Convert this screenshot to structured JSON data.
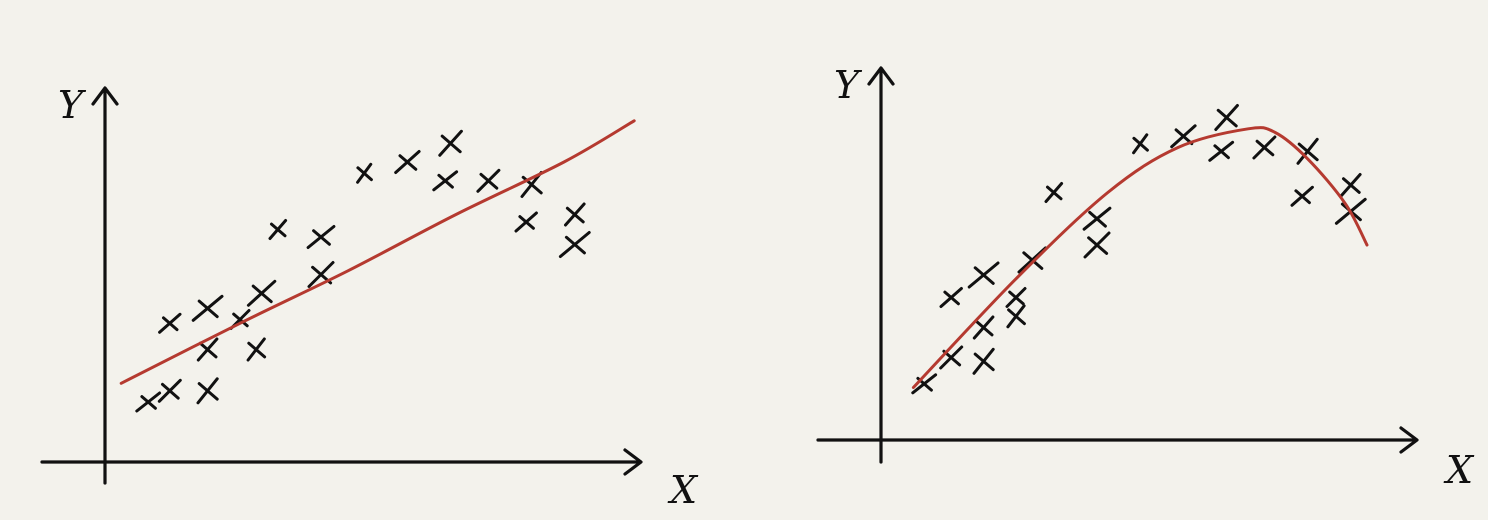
{
  "colors": {
    "background": "#f3f2ec",
    "ink": "#111111",
    "fit_curve": "#b53a30"
  },
  "chart_data": [
    {
      "type": "scatter",
      "title": "",
      "xlabel": "X",
      "ylabel": "Y",
      "xlim": [
        0,
        10
      ],
      "ylim": [
        0,
        10
      ],
      "fit": "linear",
      "points": [
        [
          0.8,
          1.6
        ],
        [
          1.2,
          1.9
        ],
        [
          1.9,
          1.9
        ],
        [
          1.2,
          3.7
        ],
        [
          1.9,
          3.0
        ],
        [
          1.9,
          4.1
        ],
        [
          2.5,
          3.8
        ],
        [
          2.8,
          3.0
        ],
        [
          2.9,
          4.5
        ],
        [
          3.2,
          6.2
        ],
        [
          4.0,
          6.0
        ],
        [
          4.0,
          5.0
        ],
        [
          4.8,
          7.7
        ],
        [
          5.6,
          8.0
        ],
        [
          6.4,
          8.5
        ],
        [
          6.3,
          7.5
        ],
        [
          7.1,
          7.5
        ],
        [
          7.9,
          7.4
        ],
        [
          7.8,
          6.4
        ],
        [
          8.7,
          6.6
        ],
        [
          8.7,
          5.8
        ]
      ],
      "fit_curve": [
        [
          0.3,
          2.1
        ],
        [
          2.5,
          3.7
        ],
        [
          4.5,
          5.1
        ],
        [
          6.5,
          6.6
        ],
        [
          8.5,
          8.0
        ],
        [
          9.8,
          9.1
        ]
      ]
    },
    {
      "type": "scatter",
      "title": "",
      "xlabel": "X",
      "ylabel": "Y",
      "xlim": [
        0,
        10
      ],
      "ylim": [
        0,
        10
      ],
      "fit": "curve",
      "points": [
        [
          0.8,
          1.5
        ],
        [
          1.3,
          2.2
        ],
        [
          1.9,
          2.1
        ],
        [
          1.3,
          3.8
        ],
        [
          1.9,
          3.0
        ],
        [
          1.9,
          4.4
        ],
        [
          2.5,
          3.8
        ],
        [
          2.5,
          3.3
        ],
        [
          2.8,
          4.8
        ],
        [
          3.2,
          6.6
        ],
        [
          4.0,
          5.9
        ],
        [
          4.0,
          5.2
        ],
        [
          4.8,
          7.9
        ],
        [
          5.6,
          8.1
        ],
        [
          6.4,
          8.6
        ],
        [
          6.3,
          7.7
        ],
        [
          7.1,
          7.8
        ],
        [
          7.9,
          7.7
        ],
        [
          7.8,
          6.5
        ],
        [
          8.7,
          6.8
        ],
        [
          8.7,
          6.1
        ]
      ],
      "fit_curve": [
        [
          0.6,
          1.4
        ],
        [
          2.5,
          4.3
        ],
        [
          4.2,
          6.6
        ],
        [
          5.5,
          7.8
        ],
        [
          6.8,
          8.3
        ],
        [
          7.3,
          8.2
        ],
        [
          7.9,
          7.5
        ],
        [
          8.6,
          6.3
        ],
        [
          9.0,
          5.2
        ]
      ]
    }
  ]
}
